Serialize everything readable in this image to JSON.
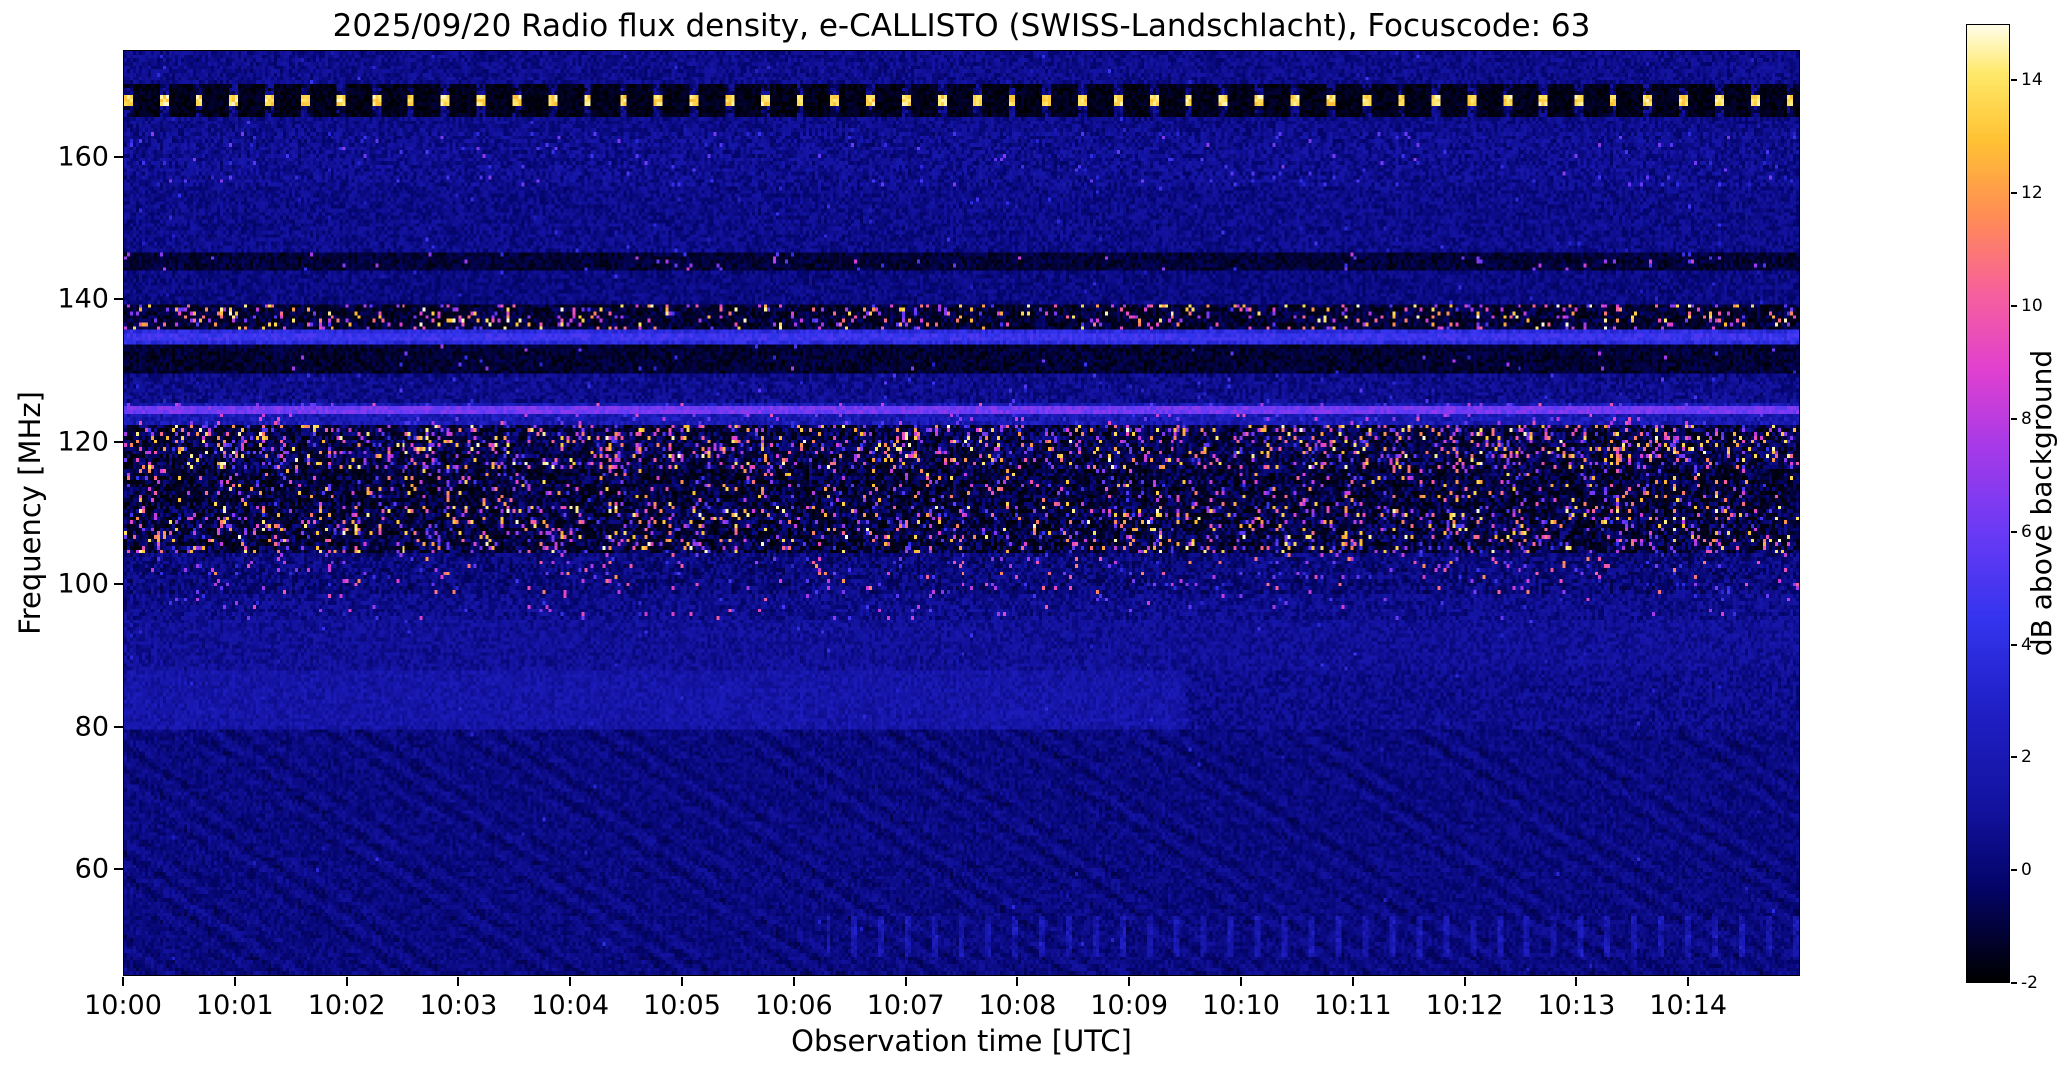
{
  "chart_data": {
    "type": "heatmap",
    "title": "2025/09/20  Radio flux density, e-CALLISTO (SWISS-Landschlacht), Focuscode: 63",
    "xlabel": "Observation time [UTC]",
    "ylabel": "Frequency [MHz]",
    "colorbar_label": "dB above background",
    "x_ticks": [
      "10:00",
      "10:01",
      "10:02",
      "10:03",
      "10:04",
      "10:05",
      "10:06",
      "10:07",
      "10:08",
      "10:09",
      "10:10",
      "10:11",
      "10:12",
      "10:13",
      "10:14"
    ],
    "x_range_minutes": [
      0,
      15
    ],
    "y_ticks": [
      160,
      140,
      120,
      100,
      80,
      60
    ],
    "y_range_mhz": [
      45,
      175
    ],
    "value_range_db": [
      -2,
      15
    ],
    "colorbar_ticks": [
      14,
      12,
      10,
      8,
      6,
      4,
      2,
      0,
      -2
    ],
    "colormap_stops": [
      [
        0.0,
        "#000000"
      ],
      [
        0.1,
        "#04046a"
      ],
      [
        0.18,
        "#12129e"
      ],
      [
        0.28,
        "#1f1fc4"
      ],
      [
        0.38,
        "#3434ee"
      ],
      [
        0.47,
        "#6a3af5"
      ],
      [
        0.56,
        "#a73ae8"
      ],
      [
        0.64,
        "#e040cf"
      ],
      [
        0.72,
        "#f7609d"
      ],
      [
        0.8,
        "#ff8c55"
      ],
      [
        0.88,
        "#ffc233"
      ],
      [
        0.95,
        "#ffe96a"
      ],
      [
        1.0,
        "#fffde8"
      ]
    ],
    "grid": {
      "cols": 560,
      "rows": 252
    },
    "seed": 20250920,
    "background_db": 0.55,
    "background_noise_db": 0.9,
    "background_spark_p": 0.004,
    "background_spark_db": [
      2,
      5
    ],
    "bands": [
      {
        "name": "beacon-168",
        "f_lo": 165.5,
        "f_hi": 170.5,
        "base": -1.6,
        "noise": 0.5,
        "pulse": {
          "period_s": 19,
          "duty_s": 4.5,
          "db": 14.8,
          "core_mhz": 0.9
        }
      },
      {
        "name": "speckle-157-163",
        "f_lo": 156.0,
        "f_hi": 163.5,
        "base": 0.7,
        "noise": 1.1,
        "spark_p": 0.02,
        "spark": [
          3,
          7
        ]
      },
      {
        "name": "quiet-147-156",
        "f_lo": 146.5,
        "f_hi": 156.0,
        "base": 0.5,
        "noise": 0.9,
        "spark_p": 0.006,
        "spark": [
          2,
          5
        ]
      },
      {
        "name": "dark-line-145",
        "f_lo": 144.0,
        "f_hi": 146.5,
        "base": -1.1,
        "noise": 0.7,
        "spark_p": 0.025,
        "spark": [
          4,
          9
        ]
      },
      {
        "name": "quiet-140-144",
        "f_lo": 139.5,
        "f_hi": 144.0,
        "base": 0.3,
        "noise": 0.8,
        "spark_p": 0.004,
        "spark": [
          2,
          5
        ]
      },
      {
        "name": "active-136-139",
        "f_lo": 135.8,
        "f_hi": 139.5,
        "base": -0.9,
        "noise": 0.9,
        "spark_p": 0.16,
        "spark": [
          5,
          15
        ],
        "dark_p": 0.3
      },
      {
        "name": "blue-line-134",
        "f_lo": 133.6,
        "f_hi": 135.8,
        "base": 3.8,
        "noise": 0.9
      },
      {
        "name": "dark-130-133",
        "f_lo": 129.8,
        "f_hi": 133.6,
        "base": -1.2,
        "noise": 0.7,
        "spark_p": 0.01,
        "spark": [
          3,
          8
        ]
      },
      {
        "name": "quiet-126-130",
        "f_lo": 125.6,
        "f_hi": 129.8,
        "base": 0.6,
        "noise": 1.0,
        "spark_p": 0.012,
        "spark": [
          2,
          6
        ]
      },
      {
        "name": "band-123-125",
        "f_lo": 122.3,
        "f_hi": 125.6,
        "base": 2.0,
        "noise": 1.2,
        "spark_p": 0.05,
        "spark": [
          4,
          10
        ]
      },
      {
        "name": "active-116-122",
        "f_lo": 116.0,
        "f_hi": 122.3,
        "base": -0.4,
        "noise": 1.3,
        "spark_p": 0.2,
        "spark": [
          4,
          15
        ],
        "dark_p": 0.26
      },
      {
        "name": "active-111-116",
        "f_lo": 111.0,
        "f_hi": 116.0,
        "base": -0.7,
        "noise": 1.2,
        "spark_p": 0.11,
        "spark": [
          4,
          14
        ],
        "dark_p": 0.3
      },
      {
        "name": "active-104-111",
        "f_lo": 104.2,
        "f_hi": 111.0,
        "base": -0.5,
        "noise": 1.3,
        "spark_p": 0.17,
        "spark": [
          4,
          15
        ],
        "dark_p": 0.3
      },
      {
        "name": "mid-99-104",
        "f_lo": 98.8,
        "f_hi": 104.2,
        "base": 0.2,
        "noise": 1.1,
        "spark_p": 0.05,
        "spark": [
          3,
          12
        ]
      },
      {
        "name": "mid-95-99",
        "f_lo": 94.8,
        "f_hi": 98.8,
        "base": 0.6,
        "noise": 1.0,
        "spark_p": 0.02,
        "spark": [
          3,
          10
        ]
      },
      {
        "name": "quiet-88-95",
        "f_lo": 88.0,
        "f_hi": 94.8,
        "base": 0.9,
        "noise": 0.9,
        "spark_p": 0.004,
        "spark": [
          2,
          5
        ]
      },
      {
        "name": "band-80-88",
        "f_lo": 79.5,
        "f_hi": 88.0,
        "base": 1.5,
        "noise": 0.9,
        "split_min": 9.5,
        "base2": 0.6,
        "spark_p": 0.003,
        "spark": [
          2,
          4
        ]
      },
      {
        "name": "low-45-80",
        "f_lo": 45.0,
        "f_hi": 79.5,
        "base": 0.25,
        "noise": 0.7,
        "ripple": 0.5,
        "spark_p": 0.0008,
        "spark": [
          2,
          4
        ],
        "vstripe": {
          "start_min": 6.3,
          "period": 9,
          "duty": 2,
          "add": 2.2,
          "f_lo": 47.5,
          "f_hi": 53.0
        }
      }
    ],
    "lines": [
      {
        "f": 124.35,
        "width_mhz": 0.8,
        "value_db": 6.2
      },
      {
        "f": 134.6,
        "width_mhz": 0.9,
        "value_db": 4.6
      }
    ]
  }
}
